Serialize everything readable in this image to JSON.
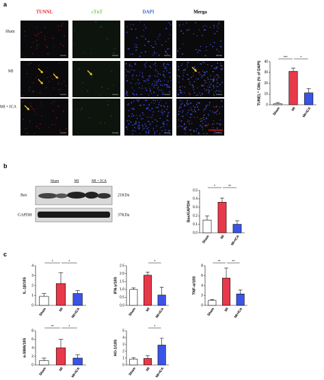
{
  "panels": [
    "a",
    "b",
    "c"
  ],
  "microscopy": {
    "columns": [
      "TUNNL",
      "cTnT",
      "DAPI",
      "Merga"
    ],
    "rows": [
      "Sham",
      "MI",
      "MI + ICA"
    ]
  },
  "blot": {
    "lanes": [
      "Sham",
      "MI",
      "MI + ICA"
    ],
    "proteins": [
      "Bax",
      "GAPDH"
    ],
    "sizes": [
      "21KDa",
      "37KDa"
    ]
  },
  "chart_data": [
    {
      "type": "bar",
      "y_label": "TUNEL⁺ CMs (% of DAPI)",
      "categories": [
        "Sham",
        "MI",
        "MI+ICA"
      ],
      "values": [
        1,
        31,
        11
      ],
      "errors": [
        1,
        3,
        4
      ],
      "colors": [
        "#ffffff",
        "#e8394b",
        "#3a54e8"
      ],
      "ylim": [
        0,
        40
      ],
      "yticks": [
        0,
        10,
        20,
        30,
        40
      ],
      "significance": [
        {
          "from": 0,
          "to": 1,
          "label": "***"
        },
        {
          "from": 1,
          "to": 2,
          "label": "*"
        }
      ]
    },
    {
      "type": "bar",
      "y_label": "Bax/GAPDH",
      "categories": [
        "Sham",
        "MI",
        "MI+ICA"
      ],
      "values": [
        0.15,
        0.36,
        0.1
      ],
      "errors": [
        0.05,
        0.05,
        0.04
      ],
      "colors": [
        "#ffffff",
        "#e8394b",
        "#3a54e8"
      ],
      "ylim": [
        0,
        0.5
      ],
      "yticks": [
        {
          "value": 0,
          "label": "0.0"
        },
        0.1,
        0.2,
        0.3,
        0.4,
        0.5
      ],
      "significance": [
        {
          "from": 0,
          "to": 1,
          "label": "*"
        },
        {
          "from": 1,
          "to": 2,
          "label": "**"
        }
      ]
    },
    {
      "type": "bar",
      "y_label": "IL-1β/18S",
      "categories": [
        "Sham",
        "MI",
        "MI+ICA"
      ],
      "values": [
        0.9,
        2.2,
        1.2
      ],
      "errors": [
        0.3,
        1.1,
        0.3
      ],
      "colors": [
        "#ffffff",
        "#e8394b",
        "#3a54e8"
      ],
      "ylim": [
        0,
        4
      ],
      "yticks": [
        0,
        1,
        2,
        3,
        4
      ],
      "significance": [
        {
          "from": 0,
          "to": 1,
          "label": "*"
        },
        {
          "from": 1,
          "to": 2,
          "label": "*"
        }
      ]
    },
    {
      "type": "bar",
      "y_label": "IFN-γ/18S",
      "categories": [
        "Sham",
        "MI",
        "MI+ICA"
      ],
      "values": [
        1.0,
        1.9,
        0.65
      ],
      "errors": [
        0.1,
        0.2,
        0.5
      ],
      "colors": [
        "#ffffff",
        "#e8394b",
        "#3a54e8"
      ],
      "ylim": [
        0,
        2.5
      ],
      "yticks": [
        {
          "value": 0,
          "label": "0.0"
        },
        0.5,
        {
          "value": 1,
          "label": "1.0"
        },
        1.5,
        {
          "value": 2,
          "label": "2.0"
        },
        2.5
      ],
      "significance": [
        {
          "from": 1,
          "to": 2,
          "label": "*"
        }
      ]
    },
    {
      "type": "bar",
      "y_label": "TNF-α/18S",
      "categories": [
        "Sham",
        "MI",
        "MI+ICA"
      ],
      "values": [
        1.0,
        5.5,
        2.3
      ],
      "errors": [
        0.2,
        2.0,
        0.8
      ],
      "colors": [
        "#ffffff",
        "#e8394b",
        "#3a54e8"
      ],
      "ylim": [
        0,
        8
      ],
      "yticks": [
        0,
        2,
        4,
        6,
        8
      ],
      "significance": [
        {
          "from": 0,
          "to": 1,
          "label": "**"
        },
        {
          "from": 1,
          "to": 2,
          "label": "**"
        }
      ]
    },
    {
      "type": "bar",
      "y_label": "α-SMA/18S",
      "categories": [
        "Sham",
        "MI",
        "MI+ICA"
      ],
      "values": [
        1.0,
        4.0,
        1.6
      ],
      "errors": [
        0.6,
        2.0,
        0.8
      ],
      "colors": [
        "#ffffff",
        "#e8394b",
        "#3a54e8"
      ],
      "ylim": [
        0,
        8
      ],
      "yticks": [
        0,
        2,
        4,
        6,
        8
      ],
      "significance": [
        {
          "from": 0,
          "to": 1,
          "label": "**"
        },
        {
          "from": 1,
          "to": 2,
          "label": "*"
        }
      ]
    },
    {
      "type": "bar",
      "y_label": "HO-1/18S",
      "categories": [
        "Sham",
        "MI",
        "MI+ICA"
      ],
      "values": [
        0.85,
        0.95,
        2.9
      ],
      "errors": [
        0.2,
        0.4,
        1.0
      ],
      "colors": [
        "#ffffff",
        "#e8394b",
        "#3a54e8"
      ],
      "ylim": [
        0,
        5
      ],
      "yticks": [
        0,
        1,
        2,
        3,
        4,
        5
      ],
      "significance": [
        {
          "from": 1,
          "to": 2,
          "label": "*"
        }
      ]
    }
  ]
}
